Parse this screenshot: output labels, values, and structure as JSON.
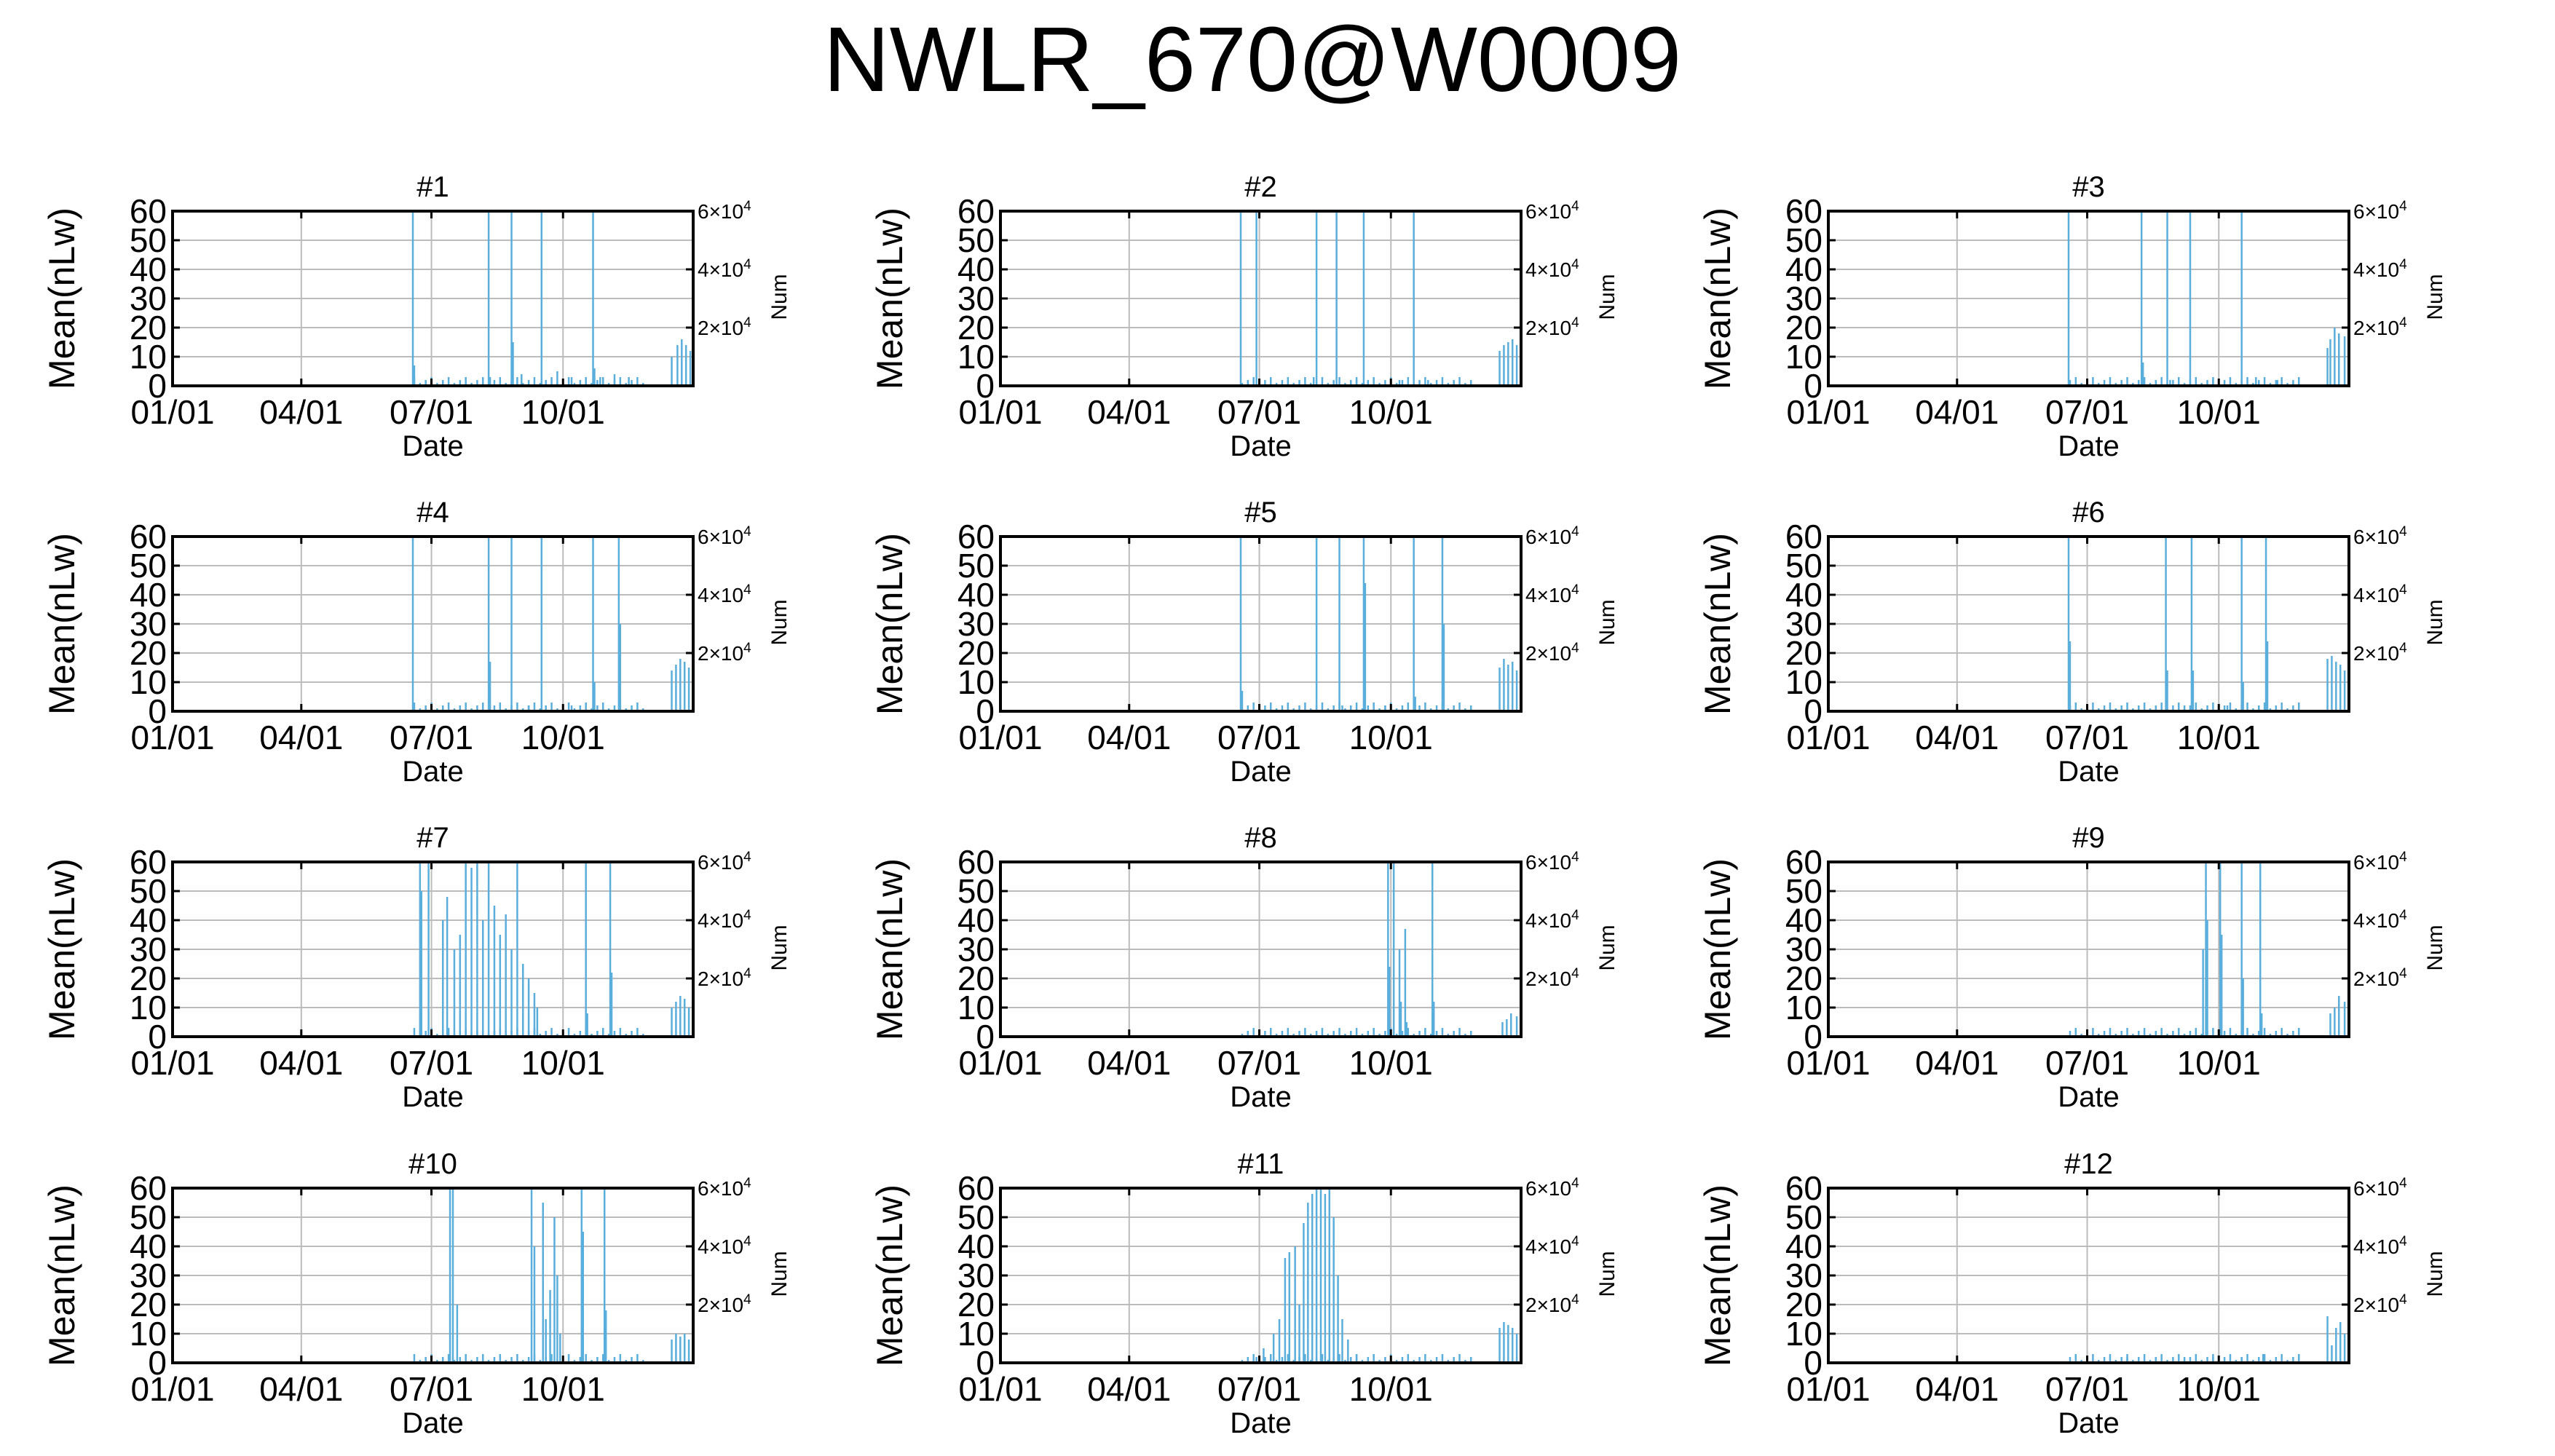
{
  "title": "NWLR_670@W0009",
  "colors": {
    "series": "#5aaedc",
    "grid": "#bcbcbc"
  },
  "chart_data": {
    "type": "bar",
    "xlabel": "Date",
    "ylabel": "Mean(nLw)",
    "y2label": "Num",
    "xticks": [
      "01/01",
      "04/01",
      "07/01",
      "10/01"
    ],
    "xtick_days": [
      1,
      91,
      182,
      274
    ],
    "xlim_days": [
      1,
      365
    ],
    "yticks": [
      0,
      10,
      20,
      30,
      40,
      50,
      60
    ],
    "ylim": [
      0,
      60
    ],
    "y2ticks": [
      {
        "base": "2×10",
        "exp": "4"
      },
      {
        "base": "4×10",
        "exp": "4"
      },
      {
        "base": "6×10",
        "exp": "4"
      }
    ],
    "y2tick_values": [
      20000,
      40000,
      60000
    ],
    "y2lim": [
      0,
      60000
    ],
    "grid": true,
    "panels": [
      {
        "title": "#1",
        "spikes": [
          [
            169,
            60
          ],
          [
            170,
            7
          ],
          [
            222,
            60
          ],
          [
            223,
            3
          ],
          [
            238,
            60
          ],
          [
            239,
            15
          ],
          [
            259,
            60
          ],
          [
            295,
            60
          ],
          [
            296,
            6
          ],
          [
            245,
            4
          ],
          [
            270,
            5
          ],
          [
            280,
            3
          ],
          [
            300,
            3
          ],
          [
            310,
            4
          ],
          [
            320,
            3
          ]
        ],
        "ends": [
          [
            350,
            10
          ],
          [
            354,
            14
          ],
          [
            357,
            16
          ],
          [
            360,
            14
          ],
          [
            363,
            12
          ],
          [
            365,
            15
          ]
        ]
      },
      {
        "title": "#2",
        "spikes": [
          [
            169,
            60
          ],
          [
            180,
            60
          ],
          [
            222,
            60
          ],
          [
            236,
            60
          ],
          [
            255,
            60
          ],
          [
            290,
            60
          ],
          [
            220,
            3
          ],
          [
            250,
            2
          ],
          [
            280,
            2
          ],
          [
            300,
            2
          ]
        ],
        "ends": [
          [
            350,
            12
          ],
          [
            353,
            14
          ],
          [
            356,
            15
          ],
          [
            359,
            16
          ],
          [
            362,
            14
          ],
          [
            365,
            12
          ]
        ]
      },
      {
        "title": "#3",
        "spikes": [
          [
            169,
            60
          ],
          [
            220,
            60
          ],
          [
            221,
            8
          ],
          [
            238,
            60
          ],
          [
            254,
            60
          ],
          [
            290,
            60
          ],
          [
            240,
            2
          ],
          [
            270,
            2
          ],
          [
            300,
            3
          ],
          [
            315,
            2
          ]
        ],
        "ends": [
          [
            350,
            13
          ],
          [
            352,
            16
          ],
          [
            355,
            20
          ],
          [
            358,
            18
          ],
          [
            362,
            17
          ],
          [
            365,
            12
          ]
        ]
      },
      {
        "title": "#4",
        "spikes": [
          [
            169,
            60
          ],
          [
            222,
            60
          ],
          [
            223,
            17
          ],
          [
            238,
            60
          ],
          [
            259,
            60
          ],
          [
            295,
            60
          ],
          [
            296,
            10
          ],
          [
            313,
            60
          ],
          [
            314,
            30
          ],
          [
            250,
            2
          ],
          [
            280,
            2
          ]
        ],
        "ends": [
          [
            350,
            14
          ],
          [
            353,
            16
          ],
          [
            356,
            18
          ],
          [
            359,
            17
          ],
          [
            362,
            15
          ],
          [
            365,
            12
          ]
        ]
      },
      {
        "title": "#5",
        "spikes": [
          [
            169,
            60
          ],
          [
            170,
            7
          ],
          [
            222,
            60
          ],
          [
            238,
            60
          ],
          [
            255,
            60
          ],
          [
            256,
            44
          ],
          [
            290,
            60
          ],
          [
            291,
            5
          ],
          [
            310,
            60
          ],
          [
            311,
            30
          ],
          [
            240,
            2
          ],
          [
            270,
            2
          ]
        ],
        "ends": [
          [
            350,
            15
          ],
          [
            353,
            18
          ],
          [
            356,
            16
          ],
          [
            359,
            17
          ],
          [
            362,
            14
          ],
          [
            365,
            12
          ]
        ]
      },
      {
        "title": "#6",
        "spikes": [
          [
            169,
            60
          ],
          [
            170,
            24
          ],
          [
            237,
            60
          ],
          [
            238,
            14
          ],
          [
            255,
            60
          ],
          [
            256,
            14
          ],
          [
            290,
            60
          ],
          [
            291,
            10
          ],
          [
            307,
            60
          ],
          [
            308,
            24
          ],
          [
            250,
            2
          ],
          [
            280,
            2
          ]
        ],
        "ends": [
          [
            350,
            18
          ],
          [
            353,
            19
          ],
          [
            356,
            17
          ],
          [
            359,
            16
          ],
          [
            362,
            14
          ],
          [
            365,
            12
          ]
        ]
      },
      {
        "title": "#7",
        "spikes": [
          [
            174,
            60
          ],
          [
            175,
            50
          ],
          [
            180,
            60
          ],
          [
            190,
            40
          ],
          [
            193,
            48
          ],
          [
            198,
            30
          ],
          [
            202,
            35
          ],
          [
            206,
            60
          ],
          [
            210,
            58
          ],
          [
            214,
            60
          ],
          [
            218,
            40
          ],
          [
            222,
            60
          ],
          [
            226,
            45
          ],
          [
            230,
            35
          ],
          [
            234,
            42
          ],
          [
            238,
            30
          ],
          [
            242,
            60
          ],
          [
            246,
            25
          ],
          [
            250,
            20
          ],
          [
            254,
            15
          ],
          [
            256,
            10
          ],
          [
            290,
            60
          ],
          [
            291,
            8
          ],
          [
            307,
            60
          ],
          [
            308,
            22
          ]
        ],
        "ends": [
          [
            350,
            10
          ],
          [
            353,
            12
          ],
          [
            356,
            14
          ],
          [
            359,
            13
          ],
          [
            362,
            10
          ],
          [
            365,
            8
          ]
        ]
      },
      {
        "title": "#8",
        "spikes": [
          [
            272,
            60
          ],
          [
            273,
            24
          ],
          [
            276,
            60
          ],
          [
            280,
            30
          ],
          [
            281,
            12
          ],
          [
            284,
            37
          ],
          [
            285,
            5
          ],
          [
            303,
            60
          ],
          [
            304,
            12
          ]
        ],
        "ends": [
          [
            352,
            5
          ],
          [
            355,
            6
          ],
          [
            358,
            8
          ],
          [
            362,
            7
          ],
          [
            365,
            6
          ]
        ]
      },
      {
        "title": "#9",
        "spikes": [
          [
            263,
            30
          ],
          [
            265,
            60
          ],
          [
            266,
            40
          ],
          [
            275,
            60
          ],
          [
            276,
            35
          ],
          [
            290,
            60
          ],
          [
            291,
            20
          ],
          [
            303,
            60
          ],
          [
            304,
            8
          ]
        ],
        "ends": [
          [
            352,
            8
          ],
          [
            355,
            10
          ],
          [
            358,
            14
          ],
          [
            362,
            12
          ],
          [
            365,
            9
          ]
        ]
      },
      {
        "title": "#10",
        "spikes": [
          [
            195,
            60
          ],
          [
            197,
            60
          ],
          [
            200,
            20
          ],
          [
            252,
            60
          ],
          [
            254,
            40
          ],
          [
            260,
            55
          ],
          [
            262,
            15
          ],
          [
            265,
            25
          ],
          [
            268,
            50
          ],
          [
            270,
            30
          ],
          [
            272,
            10
          ],
          [
            287,
            60
          ],
          [
            288,
            45
          ],
          [
            303,
            60
          ],
          [
            304,
            18
          ]
        ],
        "ends": [
          [
            350,
            8
          ],
          [
            353,
            10
          ],
          [
            356,
            9
          ],
          [
            359,
            10
          ],
          [
            362,
            8
          ],
          [
            365,
            7
          ]
        ]
      },
      {
        "title": "#11",
        "spikes": [
          [
            180,
            2
          ],
          [
            185,
            5
          ],
          [
            192,
            10
          ],
          [
            196,
            15
          ],
          [
            200,
            36
          ],
          [
            203,
            38
          ],
          [
            207,
            40
          ],
          [
            210,
            20
          ],
          [
            213,
            48
          ],
          [
            216,
            55
          ],
          [
            219,
            58
          ],
          [
            222,
            60
          ],
          [
            225,
            60
          ],
          [
            228,
            58
          ],
          [
            231,
            60
          ],
          [
            234,
            50
          ],
          [
            237,
            30
          ],
          [
            240,
            15
          ],
          [
            244,
            8
          ],
          [
            250,
            3
          ]
        ],
        "ends": [
          [
            350,
            12
          ],
          [
            353,
            14
          ],
          [
            356,
            13
          ],
          [
            359,
            12
          ],
          [
            362,
            10
          ],
          [
            365,
            10
          ]
        ]
      },
      {
        "title": "#12",
        "spikes": [
          [
            210,
            2
          ],
          [
            230,
            2
          ],
          [
            250,
            2
          ],
          [
            270,
            2
          ],
          [
            290,
            2
          ],
          [
            305,
            3
          ]
        ],
        "ends": [
          [
            350,
            16
          ],
          [
            353,
            6
          ],
          [
            356,
            12
          ],
          [
            359,
            14
          ],
          [
            362,
            10
          ],
          [
            365,
            11
          ]
        ]
      }
    ]
  }
}
